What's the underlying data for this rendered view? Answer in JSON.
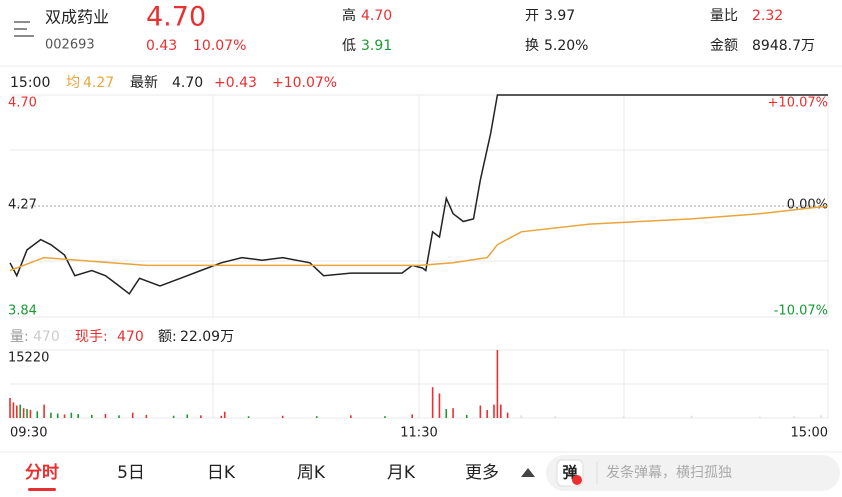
{
  "header": {
    "name": "双成药业",
    "code": "002693",
    "price": "4.70",
    "change": "0.43",
    "change_pct": "10.07%",
    "high_label": "高",
    "high": "4.70",
    "low_label": "低",
    "low": "3.91",
    "open_label": "开",
    "open": "3.97",
    "turnover_label": "换",
    "turnover": "5.20%",
    "vol_ratio_label": "量比",
    "vol_ratio": "2.32",
    "amount_label": "金额",
    "amount": "8948.7万"
  },
  "info_bar": {
    "time": "15:00",
    "avg_label": "均",
    "avg": "4.27",
    "latest_label": "最新",
    "latest": "4.70",
    "change": "+0.43",
    "change_pct": "+10.07%"
  },
  "volume_bar": {
    "vol_label": "量:",
    "vol": "470",
    "hand_label": "现手:",
    "hand": "470",
    "amount_label": "额:",
    "amount": "22.09万"
  },
  "chart_data": [
    {
      "type": "line",
      "xlim": [
        0,
        240
      ],
      "xticks": [
        {
          "value": 0,
          "label": "09:30"
        },
        {
          "value": 120,
          "label": "11:30"
        },
        {
          "value": 240,
          "label": "15:00"
        }
      ],
      "ylim": [
        3.84,
        4.7
      ],
      "yticks": [
        {
          "value": 4.7,
          "label": "4.70"
        },
        4.27,
        3.84
      ],
      "y2lim": [
        -10.07,
        10.07
      ],
      "y2ticks": [
        {
          "value": 10.07,
          "label": "+10.07%"
        },
        {
          "value": 0,
          "label": "0.00%"
        },
        {
          "value": -10.07,
          "label": "-10.07%"
        }
      ],
      "series": [
        {
          "color": "#222222",
          "x": [
            0,
            2,
            5,
            9,
            12,
            16,
            19,
            24,
            28,
            31,
            35,
            38,
            44,
            50,
            56,
            62,
            68,
            74,
            80,
            88,
            92,
            100,
            108,
            115,
            118,
            121,
            122,
            124,
            126,
            128,
            130,
            133,
            136,
            138,
            141,
            143,
            240
          ],
          "values": [
            4.05,
            4.0,
            4.1,
            4.14,
            4.12,
            4.08,
            4.0,
            4.02,
            4.0,
            3.97,
            3.93,
            3.99,
            3.96,
            3.99,
            4.02,
            4.05,
            4.07,
            4.06,
            4.07,
            4.05,
            4.0,
            4.01,
            4.01,
            4.01,
            4.04,
            4.03,
            4.02,
            4.17,
            4.15,
            4.3,
            4.24,
            4.21,
            4.22,
            4.37,
            4.55,
            4.7,
            4.7
          ]
        },
        {
          "color": "#e8a53a",
          "x": [
            0,
            10,
            20,
            40,
            60,
            100,
            120,
            130,
            140,
            143,
            150,
            170,
            200,
            220,
            240
          ],
          "values": [
            4.02,
            4.07,
            4.06,
            4.04,
            4.04,
            4.04,
            4.04,
            4.05,
            4.07,
            4.12,
            4.17,
            4.2,
            4.22,
            4.24,
            4.27
          ]
        }
      ]
    },
    {
      "type": "bar",
      "xlim": [
        0,
        240
      ],
      "ylim": [
        0,
        15220
      ],
      "yticks": [
        15220
      ],
      "x": [
        0,
        1,
        2,
        3,
        4,
        5,
        6,
        8,
        10,
        12,
        14,
        16,
        18,
        20,
        24,
        28,
        32,
        36,
        40,
        48,
        52,
        56,
        62,
        63,
        70,
        80,
        90,
        100,
        110,
        118,
        124,
        126,
        128,
        130,
        134,
        138,
        140,
        142,
        143,
        144,
        146,
        150,
        160,
        180,
        200,
        220,
        230,
        238
      ],
      "values": [
        4500,
        3500,
        2800,
        3000,
        2200,
        2000,
        1800,
        1500,
        3000,
        1200,
        1000,
        800,
        1200,
        900,
        700,
        900,
        600,
        1200,
        700,
        500,
        800,
        600,
        500,
        1400,
        400,
        500,
        400,
        600,
        400,
        800,
        6900,
        5500,
        2000,
        2200,
        700,
        2800,
        1800,
        3000,
        15220,
        3000,
        1200,
        600,
        400,
        300,
        500,
        300,
        400,
        600
      ],
      "colors": [
        "#e93030",
        "#e93030",
        "#e93030",
        "#1a9a33",
        "#e93030",
        "#1a9a33",
        "#e93030",
        "#1a9a33",
        "#e93030",
        "#1a9a33",
        "#1a9a33",
        "#e93030",
        "#1a9a33",
        "#1a9a33",
        "#1a9a33",
        "#e93030",
        "#1a9a33",
        "#e93030",
        "#e93030",
        "#1a9a33",
        "#1a9a33",
        "#e93030",
        "#e93030",
        "#e93030",
        "#1a9a33",
        "#e93030",
        "#1a9a33",
        "#e93030",
        "#1a9a33",
        "#e93030",
        "#e93030",
        "#e93030",
        "#1a9a33",
        "#e93030",
        "#1a9a33",
        "#e93030",
        "#e93030",
        "#e93030",
        "#e93030",
        "#e93030",
        "#e93030",
        "#dddddd",
        "#dddddd",
        "#dddddd",
        "#dddddd",
        "#dddddd",
        "#dddddd",
        "#dddddd"
      ]
    }
  ],
  "tabs": [
    "分时",
    "5日",
    "日K",
    "周K",
    "月K",
    "更多"
  ],
  "danmaku": {
    "icon": "弹",
    "placeholder": "发条弹幕，横扫孤独"
  }
}
